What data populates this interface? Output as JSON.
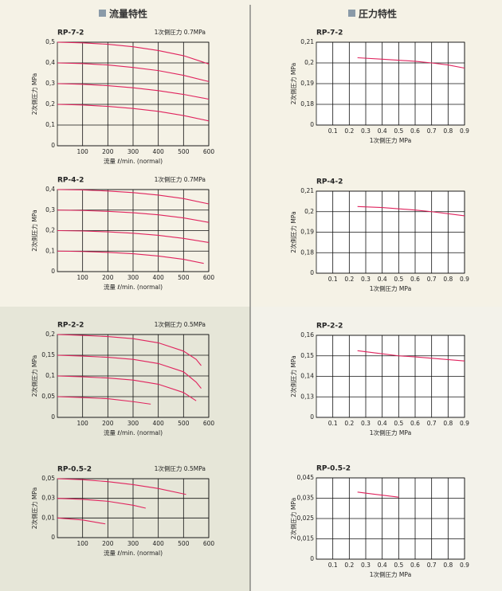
{
  "headers": {
    "left": "流量特性",
    "right": "圧力特性"
  },
  "chart_data": [
    {
      "type": "line",
      "title": "RP-7-2",
      "annotation": "1次側圧力 0.7MPa",
      "xlabel": "流量 ℓ/min. (normal)",
      "ylabel": "2次側圧力 MPa",
      "xlim": [
        0,
        600
      ],
      "xticks": [
        100,
        200,
        300,
        400,
        500,
        600
      ],
      "ylim": [
        0,
        0.5
      ],
      "yticks": [
        0,
        {
          "value": 0.1,
          "label": "0,1"
        },
        {
          "value": 0.2,
          "label": "0,2"
        },
        {
          "value": 0.3,
          "label": "0,3"
        },
        {
          "value": 0.4,
          "label": "0,4"
        },
        {
          "value": 0.5,
          "label": "0,5"
        }
      ],
      "grid": true,
      "series": [
        {
          "color": "#e0245e",
          "x": [
            0,
            100,
            200,
            300,
            400,
            500,
            600
          ],
          "values": [
            0.5,
            0.497,
            0.49,
            0.478,
            0.46,
            0.435,
            0.395
          ]
        },
        {
          "color": "#e0245e",
          "x": [
            0,
            100,
            200,
            300,
            400,
            500,
            600
          ],
          "values": [
            0.4,
            0.397,
            0.39,
            0.378,
            0.363,
            0.34,
            0.31
          ]
        },
        {
          "color": "#e0245e",
          "x": [
            0,
            100,
            200,
            300,
            400,
            500,
            600
          ],
          "values": [
            0.3,
            0.297,
            0.29,
            0.28,
            0.266,
            0.248,
            0.225
          ]
        },
        {
          "color": "#e0245e",
          "x": [
            0,
            100,
            200,
            300,
            400,
            500,
            600
          ],
          "values": [
            0.2,
            0.197,
            0.19,
            0.18,
            0.166,
            0.146,
            0.12
          ]
        }
      ]
    },
    {
      "type": "line",
      "title": "RP-4-2",
      "annotation": "1次側圧力 0.7MPa",
      "xlabel": "流量 ℓ/min. (normal)",
      "ylabel": "2次側圧力 MPa",
      "xlim": [
        0,
        600
      ],
      "xticks": [
        100,
        200,
        300,
        400,
        500,
        600
      ],
      "ylim": [
        0,
        0.4
      ],
      "yticks": [
        0,
        {
          "value": 0.1,
          "label": "0,1"
        },
        {
          "value": 0.2,
          "label": "0,2"
        },
        {
          "value": 0.3,
          "label": "0,3"
        },
        {
          "value": 0.4,
          "label": "0,4"
        }
      ],
      "grid": true,
      "series": [
        {
          "color": "#e0245e",
          "x": [
            0,
            100,
            200,
            300,
            400,
            500,
            600
          ],
          "values": [
            0.4,
            0.398,
            0.393,
            0.385,
            0.373,
            0.356,
            0.33
          ]
        },
        {
          "color": "#e0245e",
          "x": [
            0,
            100,
            200,
            300,
            400,
            500,
            600
          ],
          "values": [
            0.3,
            0.298,
            0.294,
            0.287,
            0.277,
            0.262,
            0.24
          ]
        },
        {
          "color": "#e0245e",
          "x": [
            0,
            100,
            200,
            300,
            400,
            500,
            600
          ],
          "values": [
            0.2,
            0.198,
            0.194,
            0.187,
            0.177,
            0.162,
            0.142
          ]
        },
        {
          "color": "#e0245e",
          "x": [
            0,
            100,
            200,
            300,
            400,
            500,
            580
          ],
          "values": [
            0.1,
            0.098,
            0.094,
            0.087,
            0.076,
            0.06,
            0.04
          ]
        }
      ]
    },
    {
      "type": "line",
      "title": "RP-2-2",
      "annotation": "1次側圧力 0.5MPa",
      "xlabel": "流量 ℓ/min. (normal)",
      "ylabel": "2次側圧力 MPa",
      "xlim": [
        0,
        600
      ],
      "xticks": [
        100,
        200,
        300,
        400,
        500,
        600
      ],
      "ylim": [
        0,
        0.2
      ],
      "yticks": [
        0,
        {
          "value": 0.05,
          "label": "0,05"
        },
        {
          "value": 0.1,
          "label": "0,1"
        },
        {
          "value": 0.15,
          "label": "0,15"
        },
        {
          "value": 0.2,
          "label": "0,2"
        }
      ],
      "grid": true,
      "series": [
        {
          "color": "#e0245e",
          "x": [
            0,
            100,
            200,
            300,
            400,
            500,
            550,
            570
          ],
          "values": [
            0.2,
            0.198,
            0.195,
            0.19,
            0.18,
            0.16,
            0.14,
            0.125
          ]
        },
        {
          "color": "#e0245e",
          "x": [
            0,
            100,
            200,
            300,
            400,
            500,
            550,
            570
          ],
          "values": [
            0.15,
            0.148,
            0.145,
            0.14,
            0.13,
            0.11,
            0.085,
            0.07
          ]
        },
        {
          "color": "#e0245e",
          "x": [
            0,
            100,
            200,
            300,
            400,
            500,
            550
          ],
          "values": [
            0.1,
            0.098,
            0.095,
            0.09,
            0.08,
            0.06,
            0.04
          ]
        },
        {
          "color": "#e0245e",
          "x": [
            0,
            100,
            200,
            300,
            370
          ],
          "values": [
            0.05,
            0.048,
            0.045,
            0.038,
            0.032
          ]
        }
      ]
    },
    {
      "type": "line",
      "title": "RP-0.5-2",
      "annotation": "1次側圧力 0.5MPa",
      "xlabel": "流量 ℓ/min. (normal)",
      "ylabel": "2次側圧力 MPa",
      "xlim": [
        0,
        600
      ],
      "xticks": [
        100,
        200,
        300,
        400,
        500,
        600
      ],
      "ylim": [
        0,
        0.05
      ],
      "yscale": "broken",
      "yticks": [
        0,
        {
          "value": 0.01,
          "label": "0,01"
        },
        {
          "value": 0.03,
          "label": "0,03"
        },
        {
          "value": 0.05,
          "label": "0,05"
        }
      ],
      "grid": true,
      "series": [
        {
          "color": "#e0245e",
          "x": [
            0,
            100,
            200,
            300,
            400,
            510
          ],
          "values": [
            0.05,
            0.049,
            0.047,
            0.044,
            0.04,
            0.034
          ]
        },
        {
          "color": "#e0245e",
          "x": [
            0,
            100,
            200,
            300,
            350
          ],
          "values": [
            0.03,
            0.029,
            0.027,
            0.023,
            0.02
          ]
        },
        {
          "color": "#e0245e",
          "x": [
            0,
            100,
            190
          ],
          "values": [
            0.01,
            0.009,
            0.007
          ]
        }
      ]
    },
    {
      "type": "line",
      "title": "RP-7-2",
      "xlabel": "1次側圧力 MPa",
      "ylabel": "2次側圧力 MPa",
      "xlim": [
        0,
        0.9
      ],
      "xticks": [
        0.1,
        0.2,
        0.3,
        0.4,
        0.5,
        0.6,
        0.7,
        0.8,
        0.9
      ],
      "ylim": [
        0,
        0.21
      ],
      "yscale": "broken",
      "yticks": [
        0,
        {
          "value": 0.18,
          "label": "0,18"
        },
        {
          "value": 0.19,
          "label": "0,19"
        },
        {
          "value": 0.2,
          "label": "0,2"
        },
        {
          "value": 0.21,
          "label": "0,21"
        }
      ],
      "grid": true,
      "series": [
        {
          "color": "#e0245e",
          "x": [
            0.25,
            0.4,
            0.6,
            0.7,
            0.8,
            0.9
          ],
          "values": [
            0.2025,
            0.2018,
            0.2008,
            0.2,
            0.199,
            0.1975
          ]
        }
      ]
    },
    {
      "type": "line",
      "title": "RP-4-2",
      "xlabel": "1次側圧力 MPa",
      "ylabel": "2次側圧力 MPa",
      "xlim": [
        0,
        0.9
      ],
      "xticks": [
        0.1,
        0.2,
        0.3,
        0.4,
        0.5,
        0.6,
        0.7,
        0.8,
        0.9
      ],
      "ylim": [
        0,
        0.21
      ],
      "yscale": "broken",
      "yticks": [
        0,
        {
          "value": 0.18,
          "label": "0,18"
        },
        {
          "value": 0.19,
          "label": "0,19"
        },
        {
          "value": 0.2,
          "label": "0,2"
        },
        {
          "value": 0.21,
          "label": "0,21"
        }
      ],
      "grid": true,
      "series": [
        {
          "color": "#e0245e",
          "x": [
            0.25,
            0.4,
            0.6,
            0.7,
            0.8,
            0.9
          ],
          "values": [
            0.2025,
            0.202,
            0.2008,
            0.2,
            0.199,
            0.198
          ]
        }
      ]
    },
    {
      "type": "line",
      "title": "RP-2-2",
      "xlabel": "1次側圧力 MPa",
      "ylabel": "2次側圧力 MPa",
      "xlim": [
        0,
        0.9
      ],
      "xticks": [
        0.1,
        0.2,
        0.3,
        0.4,
        0.5,
        0.6,
        0.7,
        0.8,
        0.9
      ],
      "ylim": [
        0,
        0.16
      ],
      "yscale": "broken",
      "yticks": [
        0,
        {
          "value": 0.13,
          "label": "0,13"
        },
        {
          "value": 0.14,
          "label": "0,14"
        },
        {
          "value": 0.15,
          "label": "0,15"
        },
        {
          "value": 0.16,
          "label": "0,16"
        }
      ],
      "grid": true,
      "series": [
        {
          "color": "#e0245e",
          "x": [
            0.25,
            0.4,
            0.5,
            0.6,
            0.9
          ],
          "values": [
            0.1525,
            0.151,
            0.15,
            0.1495,
            0.1475
          ]
        }
      ]
    },
    {
      "type": "line",
      "title": "RP-0.5-2",
      "xlabel": "1次側圧力 MPa",
      "ylabel": "2次側圧力 MPa",
      "xlim": [
        0,
        0.9
      ],
      "xticks": [
        0.1,
        0.2,
        0.3,
        0.4,
        0.5,
        0.6,
        0.7,
        0.8,
        0.9
      ],
      "ylim": [
        0,
        0.045
      ],
      "yscale": "broken",
      "yticks": [
        0,
        {
          "value": 0.015,
          "label": "0,015"
        },
        {
          "value": 0.025,
          "label": "0,025"
        },
        {
          "value": 0.035,
          "label": "0,035"
        },
        {
          "value": 0.045,
          "label": "0,045"
        }
      ],
      "grid": true,
      "series": [
        {
          "color": "#e0245e",
          "x": [
            0.25,
            0.35,
            0.5
          ],
          "values": [
            0.038,
            0.037,
            0.0355
          ]
        }
      ]
    }
  ]
}
